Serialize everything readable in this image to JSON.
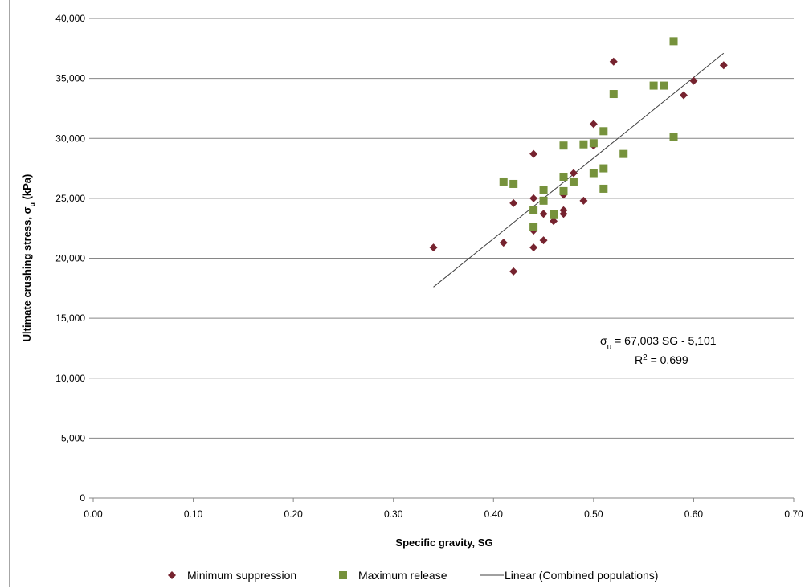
{
  "chart_data": {
    "type": "scatter",
    "title": "",
    "xlabel": "Specific gravity, SG",
    "ylabel": "Ultimate crushing stress, σu (kPa)",
    "ylabel_parts": {
      "main": "Ultimate crushing stress, σ",
      "sub": "u",
      "tail": " (kPa)"
    },
    "xlim": [
      0,
      0.7
    ],
    "ylim": [
      0,
      40000
    ],
    "x_ticks": [
      "0.00",
      "0.10",
      "0.20",
      "0.30",
      "0.40",
      "0.50",
      "0.60",
      "0.70"
    ],
    "x_tick_values": [
      0,
      0.1,
      0.2,
      0.3,
      0.4,
      0.5,
      0.6,
      0.7
    ],
    "y_ticks": [
      "0",
      "5,000",
      "10,000",
      "15,000",
      "20,000",
      "25,000",
      "30,000",
      "35,000",
      "40,000"
    ],
    "y_tick_values": [
      0,
      5000,
      10000,
      15000,
      20000,
      25000,
      30000,
      35000,
      40000
    ],
    "grid": "horizontal",
    "legend_position": "bottom",
    "series": [
      {
        "name": "Minimum suppression",
        "marker": "diamond",
        "color": "#76232f",
        "points": [
          [
            0.34,
            20900
          ],
          [
            0.41,
            21300
          ],
          [
            0.42,
            24600
          ],
          [
            0.42,
            18900
          ],
          [
            0.44,
            28700
          ],
          [
            0.44,
            25000
          ],
          [
            0.44,
            22300
          ],
          [
            0.44,
            20900
          ],
          [
            0.45,
            23700
          ],
          [
            0.45,
            21500
          ],
          [
            0.46,
            23100
          ],
          [
            0.47,
            25300
          ],
          [
            0.47,
            24000
          ],
          [
            0.47,
            23700
          ],
          [
            0.48,
            27100
          ],
          [
            0.49,
            24800
          ],
          [
            0.5,
            31200
          ],
          [
            0.5,
            29400
          ],
          [
            0.52,
            36400
          ],
          [
            0.59,
            33600
          ],
          [
            0.6,
            34800
          ],
          [
            0.63,
            36100
          ]
        ]
      },
      {
        "name": "Maximum release",
        "marker": "square",
        "color": "#76923c",
        "points": [
          [
            0.41,
            26400
          ],
          [
            0.42,
            26200
          ],
          [
            0.44,
            24000
          ],
          [
            0.44,
            22600
          ],
          [
            0.45,
            25700
          ],
          [
            0.45,
            24800
          ],
          [
            0.46,
            23700
          ],
          [
            0.46,
            23600
          ],
          [
            0.47,
            29400
          ],
          [
            0.47,
            26800
          ],
          [
            0.47,
            25600
          ],
          [
            0.48,
            26400
          ],
          [
            0.49,
            29500
          ],
          [
            0.5,
            29600
          ],
          [
            0.5,
            27100
          ],
          [
            0.51,
            30600
          ],
          [
            0.51,
            27500
          ],
          [
            0.51,
            25800
          ],
          [
            0.52,
            33700
          ],
          [
            0.53,
            28700
          ],
          [
            0.56,
            34400
          ],
          [
            0.57,
            34400
          ],
          [
            0.58,
            38100
          ],
          [
            0.58,
            30100
          ]
        ]
      },
      {
        "name": "Linear (Combined populations)",
        "marker": "line",
        "color": "#404040",
        "points": [
          [
            0.34,
            17600
          ],
          [
            0.63,
            37100
          ]
        ]
      }
    ],
    "annotations": {
      "equation_symbol": "σ",
      "equation_sub": "u",
      "equation_rest": " = 67,003 SG - 5,101",
      "r2_prefix": "R",
      "r2_sup": "2",
      "r2_rest": " = 0.699"
    }
  }
}
